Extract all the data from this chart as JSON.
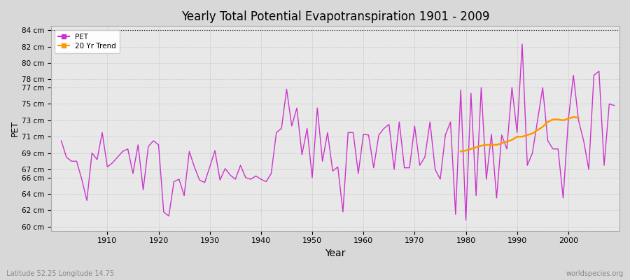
{
  "title": "Yearly Total Potential Evapotranspiration 1901 - 2009",
  "xlabel": "Year",
  "ylabel": "PET",
  "subtitle": "Latitude 52.25 Longitude 14.75",
  "watermark": "worldspecies.org",
  "pet_color": "#cc33cc",
  "trend_color": "#ff9900",
  "fig_bg_color": "#d8d8d8",
  "plot_bg_color": "#e8e8e8",
  "ylim": [
    59.5,
    84.5
  ],
  "yticks": [
    60,
    62,
    64,
    66,
    67,
    69,
    71,
    73,
    75,
    77,
    78,
    80,
    82,
    84
  ],
  "xlim": [
    1899,
    2010
  ],
  "xticks": [
    1910,
    1920,
    1930,
    1940,
    1950,
    1960,
    1970,
    1980,
    1990,
    2000
  ],
  "pet_years": [
    1901,
    1902,
    1903,
    1904,
    1905,
    1906,
    1907,
    1908,
    1909,
    1910,
    1911,
    1912,
    1913,
    1914,
    1915,
    1916,
    1917,
    1918,
    1919,
    1920,
    1921,
    1922,
    1923,
    1924,
    1925,
    1926,
    1927,
    1928,
    1929,
    1930,
    1931,
    1932,
    1933,
    1934,
    1935,
    1936,
    1937,
    1938,
    1939,
    1940,
    1941,
    1942,
    1943,
    1944,
    1945,
    1946,
    1947,
    1948,
    1949,
    1950,
    1951,
    1952,
    1953,
    1954,
    1955,
    1956,
    1957,
    1958,
    1959,
    1960,
    1961,
    1962,
    1963,
    1964,
    1965,
    1966,
    1967,
    1968,
    1969,
    1970,
    1971,
    1972,
    1973,
    1974,
    1975,
    1976,
    1977,
    1978,
    1979,
    1980,
    1981,
    1982,
    1983,
    1984,
    1985,
    1986,
    1987,
    1988,
    1989,
    1990,
    1991,
    1992,
    1993,
    1994,
    1995,
    1996,
    1997,
    1998,
    1999,
    2000,
    2001,
    2002,
    2003,
    2004,
    2005,
    2006,
    2007,
    2008,
    2009
  ],
  "pet_values": [
    70.5,
    68.5,
    68.0,
    68.0,
    65.8,
    63.2,
    69.0,
    68.2,
    71.5,
    67.3,
    67.8,
    68.5,
    69.2,
    69.5,
    66.5,
    70.0,
    64.5,
    69.8,
    70.5,
    70.0,
    61.8,
    61.3,
    65.5,
    65.8,
    63.8,
    69.2,
    67.3,
    65.7,
    65.4,
    67.3,
    69.3,
    65.7,
    67.1,
    66.3,
    65.8,
    67.5,
    66.0,
    65.8,
    66.2,
    65.8,
    65.5,
    66.5,
    71.5,
    72.0,
    76.8,
    72.3,
    74.5,
    68.8,
    72.0,
    66.0,
    74.5,
    68.0,
    71.5,
    66.8,
    67.3,
    61.8,
    71.5,
    71.5,
    66.5,
    71.3,
    71.2,
    67.2,
    71.2,
    72.0,
    72.5,
    67.0,
    72.8,
    67.2,
    67.2,
    72.3,
    67.5,
    68.5,
    72.8,
    67.0,
    65.8,
    71.2,
    72.8,
    61.5,
    76.7,
    60.8,
    76.3,
    63.8,
    77.0,
    65.8,
    71.3,
    63.5,
    71.2,
    69.5,
    77.0,
    71.5,
    82.3,
    67.5,
    69.0,
    73.0,
    77.0,
    70.5,
    69.5,
    69.5,
    63.5,
    73.0,
    78.5,
    73.0,
    70.5,
    67.0,
    78.5,
    79.0,
    67.5,
    75.0,
    74.8
  ],
  "trend_years": [
    1979,
    1980,
    1981,
    1982,
    1983,
    1984,
    1985,
    1986,
    1987,
    1988,
    1989,
    1990,
    1991,
    1992,
    1993,
    1994,
    1995,
    1996,
    1997,
    1998,
    1999,
    2000,
    2001,
    2002
  ],
  "trend_values": [
    69.2,
    69.3,
    69.5,
    69.7,
    69.9,
    70.0,
    70.0,
    70.0,
    70.2,
    70.4,
    70.6,
    71.0,
    71.0,
    71.2,
    71.4,
    71.8,
    72.2,
    72.8,
    73.1,
    73.1,
    73.0,
    73.2,
    73.4,
    73.3
  ]
}
